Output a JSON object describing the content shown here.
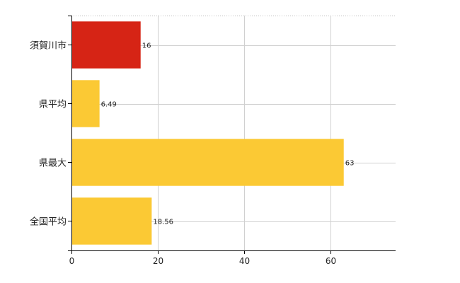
{
  "chart_data": {
    "type": "bar",
    "orientation": "horizontal",
    "categories": [
      "須賀川市",
      "県平均",
      "県最大",
      "全国平均"
    ],
    "values": [
      16,
      6.49,
      63,
      18.56
    ],
    "data_labels": [
      "16",
      "6.49",
      "63",
      "18.56"
    ],
    "bar_colors": [
      "#d62415",
      "#fbc934",
      "#fbc934",
      "#fbc934"
    ],
    "xlim": [
      0,
      75
    ],
    "xticks": [
      0,
      20,
      40,
      60
    ],
    "grid": true,
    "title": "",
    "xlabel": "",
    "ylabel": ""
  }
}
